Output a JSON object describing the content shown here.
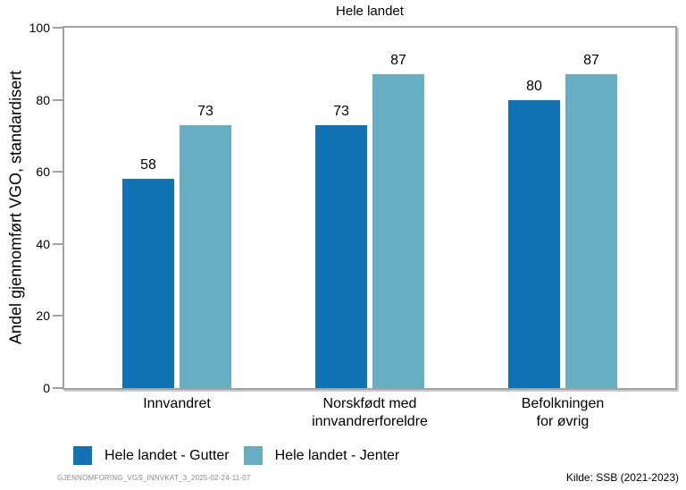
{
  "chart_data": {
    "type": "bar",
    "title": "Hele landet",
    "ylabel": "Andel gjennomført VGO, standardisert",
    "xlabel": "",
    "ylim": [
      0,
      100
    ],
    "yticks": [
      0,
      20,
      40,
      60,
      80,
      100
    ],
    "grid": false,
    "legend_position": "bottom-left",
    "categories": [
      "Innvandret",
      "Norskfødt med\ninnvandrerforeldre",
      "Befolkningen\nfor øvrig"
    ],
    "series": [
      {
        "name": "Hele landet - Gutter",
        "color": "#1173B4",
        "values": [
          58,
          73,
          80
        ]
      },
      {
        "name": "Hele landet - Jenter",
        "color": "#68AEC3",
        "values": [
          73,
          87,
          87
        ]
      }
    ],
    "bar_value_labels": [
      [
        58,
        73,
        80
      ],
      [
        73,
        87,
        87
      ]
    ]
  },
  "colors": {
    "frame": "#a2a2a2",
    "series_gutter": "#1173B4",
    "series_jenter": "#68AEC3",
    "footer_code_text": "#8a8a8a"
  },
  "footer": {
    "left_code": "GJENNOMFORING_VGS_INNVKAT_3_2025-02-24-11-07",
    "right_source": "Kilde: SSB (2021-2023)"
  }
}
